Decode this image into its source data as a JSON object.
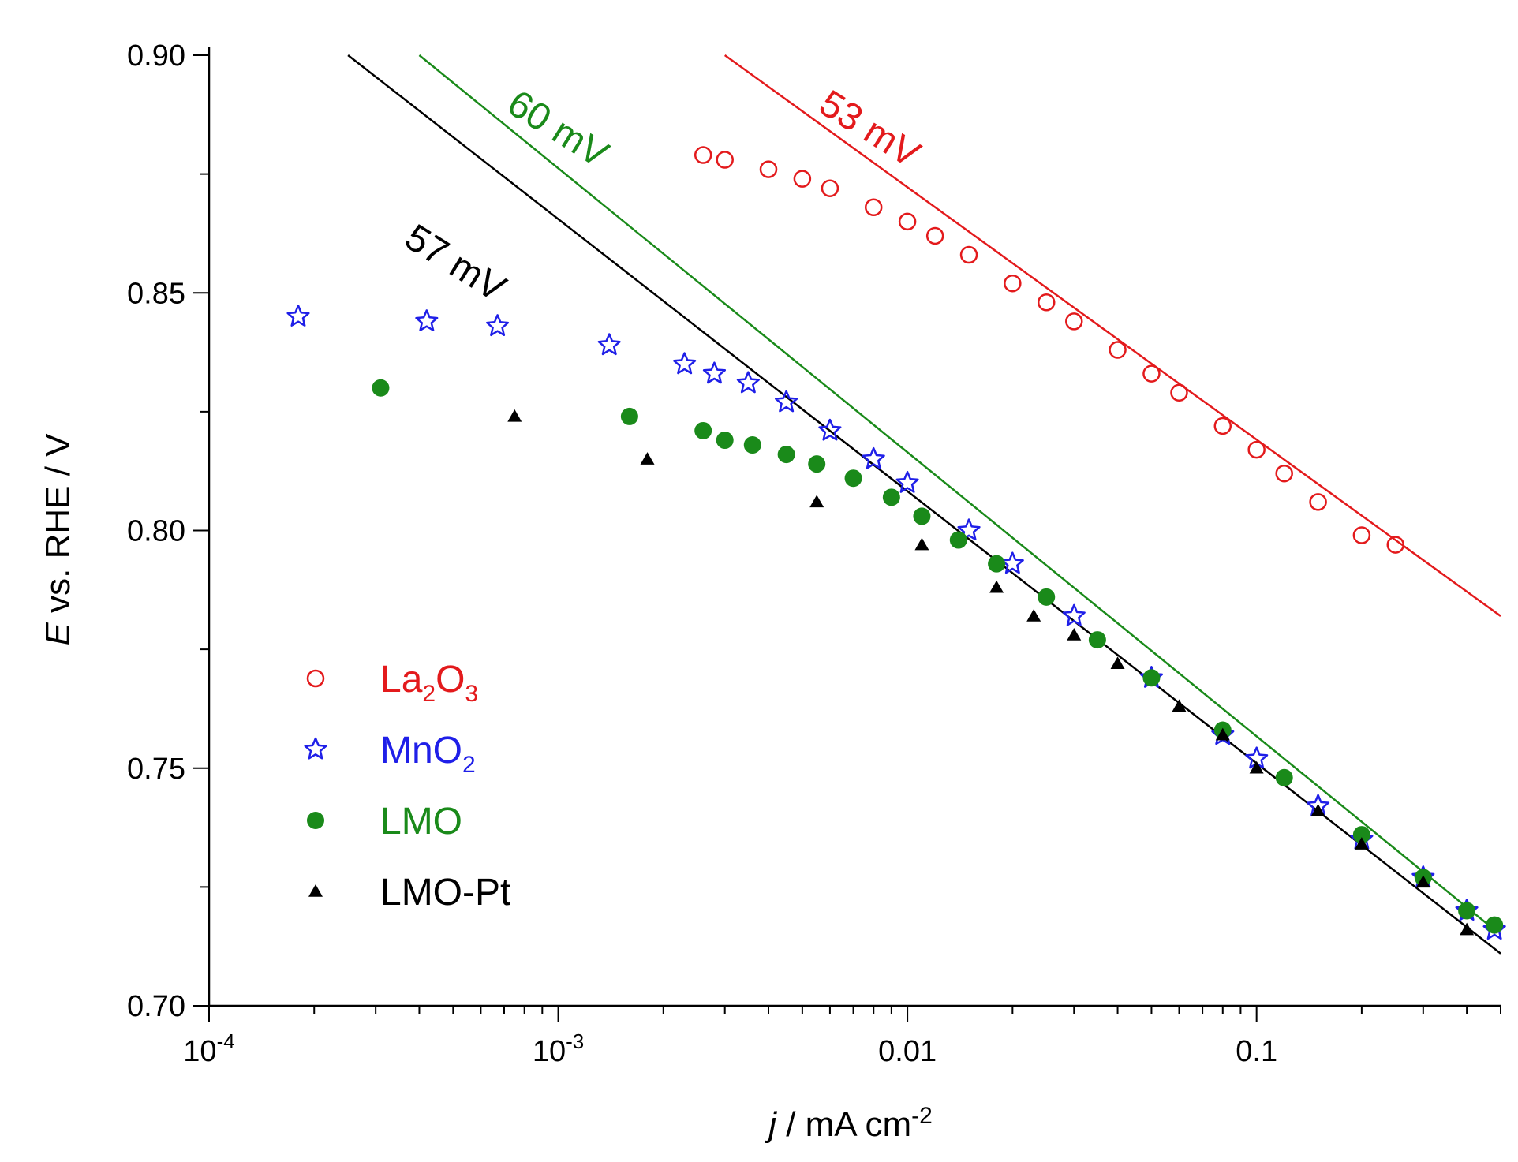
{
  "chart_data": {
    "type": "scatter",
    "title": "",
    "xlabel": {
      "italic": "j",
      "rest": " / mA cm",
      "sup": "-2"
    },
    "ylabel": {
      "italic": "E",
      "rest": " vs. RHE / V"
    },
    "xscale": "log",
    "xlim": [
      0.0001,
      0.5
    ],
    "ylim": [
      0.7,
      0.9
    ],
    "x_ticks": [
      {
        "value": 0.0001,
        "base": "10",
        "exp": "-4"
      },
      {
        "value": 0.001,
        "base": "10",
        "exp": "-3"
      },
      {
        "value": 0.01,
        "label": "0.01"
      },
      {
        "value": 0.1,
        "label": "0.1"
      }
    ],
    "y_ticks": [
      {
        "value": 0.7,
        "label": "0.70"
      },
      {
        "value": 0.75,
        "label": "0.75"
      },
      {
        "value": 0.8,
        "label": "0.80"
      },
      {
        "value": 0.85,
        "label": "0.85"
      },
      {
        "value": 0.9,
        "label": "0.90"
      }
    ],
    "legend_position": "lower-left",
    "series": [
      {
        "name": "La2O3",
        "label_main": "La",
        "label_sub1": "2",
        "label_mid": "O",
        "label_sub2": "3",
        "marker": "open-circle",
        "color": "#e31a1c",
        "x": [
          0.0026,
          0.003,
          0.004,
          0.005,
          0.006,
          0.008,
          0.01,
          0.012,
          0.015,
          0.02,
          0.025,
          0.03,
          0.04,
          0.05,
          0.06,
          0.08,
          0.1,
          0.12,
          0.15,
          0.2,
          0.25
        ],
        "y": [
          0.879,
          0.878,
          0.876,
          0.874,
          0.872,
          0.868,
          0.865,
          0.862,
          0.858,
          0.852,
          0.848,
          0.844,
          0.838,
          0.833,
          0.829,
          0.822,
          0.817,
          0.812,
          0.806,
          0.799,
          0.797
        ]
      },
      {
        "name": "MnO2",
        "label_main": "MnO",
        "label_sub1": "2",
        "marker": "open-star",
        "color": "#1f1fe8",
        "x": [
          0.00018,
          0.00042,
          0.00067,
          0.0014,
          0.0023,
          0.0028,
          0.0035,
          0.0045,
          0.006,
          0.008,
          0.01,
          0.015,
          0.02,
          0.03,
          0.05,
          0.08,
          0.1,
          0.15,
          0.2,
          0.3,
          0.4,
          0.48
        ],
        "y": [
          0.845,
          0.844,
          0.843,
          0.839,
          0.835,
          0.833,
          0.831,
          0.827,
          0.821,
          0.815,
          0.81,
          0.8,
          0.793,
          0.782,
          0.769,
          0.757,
          0.752,
          0.742,
          0.735,
          0.727,
          0.72,
          0.716
        ]
      },
      {
        "name": "LMO",
        "label_main": "LMO",
        "marker": "filled-circle",
        "color": "#1a8a1a",
        "x": [
          0.00031,
          0.0016,
          0.0026,
          0.003,
          0.0036,
          0.0045,
          0.0055,
          0.007,
          0.009,
          0.011,
          0.014,
          0.018,
          0.025,
          0.035,
          0.05,
          0.08,
          0.12,
          0.2,
          0.3,
          0.4,
          0.48
        ],
        "y": [
          0.83,
          0.824,
          0.821,
          0.819,
          0.818,
          0.816,
          0.814,
          0.811,
          0.807,
          0.803,
          0.798,
          0.793,
          0.786,
          0.777,
          0.769,
          0.758,
          0.748,
          0.736,
          0.727,
          0.72,
          0.717
        ]
      },
      {
        "name": "LMO-Pt",
        "label_main": "LMO-Pt",
        "marker": "filled-triangle",
        "color": "#000000",
        "x": [
          0.00075,
          0.0018,
          0.0055,
          0.011,
          0.018,
          0.023,
          0.03,
          0.04,
          0.06,
          0.08,
          0.1,
          0.15,
          0.2,
          0.3,
          0.4
        ],
        "y": [
          0.824,
          0.815,
          0.806,
          0.797,
          0.788,
          0.782,
          0.778,
          0.772,
          0.763,
          0.757,
          0.75,
          0.741,
          0.734,
          0.726,
          0.716
        ]
      }
    ],
    "tafel_lines": [
      {
        "label": "60 mV",
        "color": "#1a8a1a",
        "x": [
          0.0004,
          0.48
        ],
        "y": [
          0.9,
          0.716
        ],
        "label_rotation": 32
      },
      {
        "label": "57 mV",
        "color": "#000000",
        "x": [
          0.00025,
          0.5
        ],
        "y": [
          0.9,
          0.711
        ],
        "label_rotation": 32
      },
      {
        "label": "53 mV",
        "color": "#e31a1c",
        "x": [
          0.003,
          0.5
        ],
        "y": [
          0.9,
          0.782
        ],
        "label_rotation": 32
      }
    ]
  }
}
